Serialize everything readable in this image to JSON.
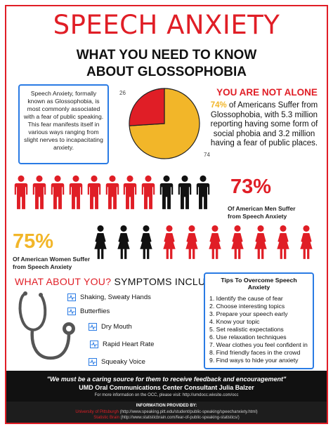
{
  "title": "SPEECH ANXIETY",
  "subtitle_line1": "WHAT YOU NEED TO KNOW",
  "subtitle_line2": "ABOUT GLOSSOPHOBIA",
  "intro_text": "Speech Anxiety, formally known as Glossophobia, is most commonly associated with a fear of public speaking. This fear manifests itself in various ways ranging from slight nerves to incapacitating anxiety.",
  "pie": {
    "slices": [
      {
        "value": 74,
        "color": "#f2b629"
      },
      {
        "value": 26,
        "color": "#e01e26"
      }
    ],
    "label_small": "26",
    "label_large": "74"
  },
  "not_alone": {
    "heading": "YOU ARE NOT ALONE",
    "pct": "74%",
    "text": " of Americans Suffer from Glossophobia, with 5.3 million reporting having some form of social phobia and 3.2 million having a fear of public places."
  },
  "men": {
    "pct": "73%",
    "caption_line1": "Of American Men Suffer",
    "caption_line2": "from Speech Anxiety",
    "pct_color": "#e01e26",
    "count": 11,
    "red_count": 8,
    "colors": {
      "red": "#e01e26",
      "black": "#111111"
    }
  },
  "women": {
    "pct": "75%",
    "caption_line1": "Of American Women Suffer",
    "caption_line2": "from Speech Anxiety",
    "pct_color": "#f2b629",
    "count": 10,
    "black_count": 3,
    "colors": {
      "red": "#e01e26",
      "black": "#111111"
    }
  },
  "symptoms": {
    "heading_red": "WHAT ABOUT YOU?",
    "heading_rest": " SYMPTOMS INCLUDE:",
    "items": [
      "Shaking, Sweaty Hands",
      "Butterflies",
      "Dry Mouth",
      "Rapid Heart Rate",
      "Squeaky Voice"
    ],
    "icon": "heartbeat-icon"
  },
  "tips": {
    "title": "Tips To Overcome Speech Anxiety",
    "items": [
      "1. Identify the cause of fear",
      "2. Choose interesting topics",
      "3. Prepare your speech early",
      "4. Know your topic",
      "5. Set realistic expectations",
      "6. Use relaxation techniques",
      "7. Wear clothes you feel confident in",
      "8. Find friendly faces in the crowd",
      "9. Find ways to hide your anxiety"
    ]
  },
  "footer": {
    "quote": "\"We must be a caring source for them to receive feedback and encouragement\"",
    "consultant": "UMD Oral Communications Center Consultant Julia Balzer",
    "more_info": "For more information on the OCC, please visit: http://umdocc.wixsite.com/occ",
    "provided_by": "INFORMATION PROVIDED BY:",
    "sources": [
      {
        "name": "University of Pittsburgh",
        "url": " (http://www.speaking.pitt.edu/student/public-speaking/speechanxiety.html)"
      },
      {
        "name": "Statistic Brain",
        "url": " (http://www.statisticbrain.com/fear-of-public-speaking-statistics/)"
      }
    ]
  },
  "colors": {
    "accent_red": "#e01e26",
    "accent_yellow": "#f2b629",
    "accent_blue": "#2a7be4"
  }
}
